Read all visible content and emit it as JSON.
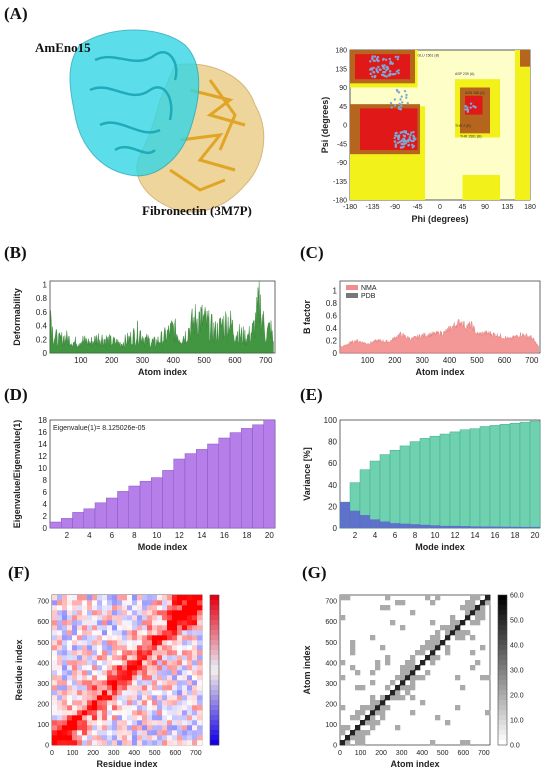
{
  "panels": {
    "A": "(A)",
    "B": "(B)",
    "C": "(C)",
    "D": "(D)",
    "E": "(E)",
    "F": "(F)",
    "G": "(G)"
  },
  "proteins": {
    "enolase": "AmEno15",
    "fibronectin": "Fibronectin (3M7P)"
  },
  "colors": {
    "enolase": "#33d6e6",
    "fibronectin": "#e8c87a",
    "ribbon": "#e0a31e",
    "ram_core": "#e01818",
    "ram_allowed": "#b5651d",
    "ram_generous": "#f2f21a",
    "ram_outside": "#fefec8",
    "points": "#7fa8d8",
    "green": "#2e8b2e",
    "nma": "#f28c8c",
    "pdb": "#777777",
    "purple": "#b57ee8",
    "teal": "#6fd1b0",
    "blue": "#5a5ad0"
  },
  "chart_data": [
    {
      "id": "ramachandran",
      "type": "scatter",
      "xlabel": "Phi (degrees)",
      "ylabel": "Psi (degrees)",
      "xlim": [
        -180,
        180
      ],
      "ylim": [
        -180,
        180
      ],
      "xticks": [
        -180,
        -135,
        -90,
        -45,
        0,
        45,
        90,
        135,
        180
      ],
      "yticks": [
        180,
        135,
        90,
        45,
        0,
        -45,
        -90,
        -135,
        -180
      ],
      "xtick_labels": [
        "-180",
        "-135",
        "-90",
        "-45",
        "0",
        "45",
        "90",
        "135",
        "180"
      ],
      "ytick_labels": [
        "180",
        "135",
        "90",
        "45",
        "0",
        "-45",
        "-90",
        "-135",
        "-180"
      ],
      "region_labels": [
        "GLU 1561 (B)",
        "ASP 239 (A)",
        "ASN 156 (A)",
        "THR 2 (B)",
        "THR 1561 (B)"
      ]
    },
    {
      "id": "deformability",
      "type": "area",
      "xlabel": "Atom index",
      "ylabel": "Deformability",
      "xlim": [
        0,
        730
      ],
      "ylim": [
        0,
        1.05
      ],
      "xticks": [
        100,
        200,
        300,
        400,
        500,
        600,
        700
      ],
      "xtick_labels": [
        "100",
        "200",
        "300",
        "400",
        "500",
        "600",
        "700"
      ],
      "yticks": [
        0,
        0.2,
        0.4,
        0.6,
        0.8,
        1
      ],
      "ytick_labels": [
        "0",
        "0.2",
        "0.4",
        "0.6",
        "0.8",
        "1"
      ],
      "x": [
        0,
        5,
        10,
        30,
        50,
        80,
        100,
        130,
        160,
        200,
        230,
        260,
        290,
        310,
        340,
        370,
        400,
        420,
        440,
        460,
        480,
        500,
        520,
        540,
        560,
        580,
        600,
        620,
        640,
        660,
        680,
        700,
        715,
        725
      ],
      "y": [
        1.0,
        0.6,
        0.35,
        0.25,
        0.3,
        0.2,
        0.25,
        0.2,
        0.3,
        0.22,
        0.18,
        0.28,
        0.42,
        0.25,
        0.2,
        0.3,
        0.48,
        0.3,
        0.35,
        0.55,
        0.7,
        0.62,
        0.5,
        0.4,
        0.55,
        0.62,
        0.4,
        0.35,
        0.3,
        0.45,
        0.95,
        0.35,
        0.5,
        0.2
      ]
    },
    {
      "id": "bfactor",
      "type": "area",
      "xlabel": "Atom index",
      "ylabel": "B factor",
      "xlim": [
        0,
        730
      ],
      "ylim": [
        0,
        1.15
      ],
      "xticks": [
        100,
        200,
        300,
        400,
        500,
        600,
        700
      ],
      "xtick_labels": [
        "100",
        "200",
        "300",
        "400",
        "500",
        "600",
        "700"
      ],
      "yticks": [
        0,
        0.2,
        0.4,
        0.6,
        0.8,
        1
      ],
      "ytick_labels": [
        "0",
        "0.2",
        "0.4",
        "0.6",
        "0.8",
        "1"
      ],
      "legend": [
        "NMA",
        "PDB"
      ],
      "x": [
        0,
        10,
        30,
        60,
        100,
        140,
        180,
        220,
        260,
        300,
        340,
        380,
        420,
        440,
        460,
        480,
        500,
        540,
        580,
        620,
        660,
        700,
        725
      ],
      "y": [
        0.1,
        0.1,
        0.15,
        0.2,
        0.15,
        0.2,
        0.18,
        0.3,
        0.22,
        0.28,
        0.3,
        0.32,
        0.45,
        0.5,
        0.42,
        0.45,
        0.3,
        0.32,
        0.28,
        0.22,
        0.3,
        0.25,
        0.1
      ]
    },
    {
      "id": "eigenvalue",
      "type": "bar",
      "xlabel": "Mode index",
      "ylabel": "Eigenvalue/Eigenvalue(1)",
      "annotation": "Eigenvalue(1)= 8.125026e-05",
      "ylim": [
        0,
        18
      ],
      "categories": [
        1,
        2,
        3,
        4,
        5,
        6,
        7,
        8,
        9,
        10,
        11,
        12,
        13,
        14,
        15,
        16,
        17,
        18,
        19,
        20
      ],
      "values": [
        1.0,
        1.6,
        2.6,
        3.2,
        4.2,
        5.0,
        6.1,
        7.0,
        7.8,
        8.4,
        9.6,
        11.5,
        12.4,
        13.1,
        14.0,
        15.0,
        15.9,
        16.6,
        17.2,
        18.0
      ],
      "xtick_labels": [
        "2",
        "4",
        "6",
        "8",
        "10",
        "12",
        "14",
        "16",
        "18",
        "20"
      ],
      "yticks": [
        0,
        2,
        4,
        6,
        8,
        10,
        12,
        14,
        16,
        18
      ],
      "ytick_labels": [
        "0",
        "2",
        "4",
        "6",
        "8",
        "10",
        "12",
        "14",
        "16",
        "18"
      ]
    },
    {
      "id": "variance",
      "type": "bar",
      "xlabel": "Mode index",
      "ylabel": "Variance [%]",
      "ylim": [
        0,
        100
      ],
      "categories": [
        1,
        2,
        3,
        4,
        5,
        6,
        7,
        8,
        9,
        10,
        11,
        12,
        13,
        14,
        15,
        16,
        17,
        18,
        19,
        20
      ],
      "cumulative": [
        24,
        42,
        54,
        62,
        68,
        72,
        76,
        80,
        83,
        85,
        87,
        89,
        91,
        92,
        94,
        95,
        96,
        97,
        98,
        99
      ],
      "individual": [
        24,
        16,
        12,
        8,
        6,
        4.5,
        4,
        3.5,
        3,
        2.5,
        2,
        2,
        1.8,
        1.5,
        1.4,
        1.3,
        1.2,
        1.1,
        1,
        1
      ],
      "xtick_labels": [
        "2",
        "4",
        "6",
        "8",
        "10",
        "12",
        "14",
        "16",
        "18",
        "20"
      ],
      "yticks": [
        0,
        20,
        40,
        60,
        80,
        100
      ],
      "ytick_labels": [
        "0",
        "20",
        "40",
        "60",
        "80",
        "100"
      ]
    },
    {
      "id": "covariance",
      "type": "heatmap",
      "xlabel": "Residue index",
      "ylabel": "Residue index",
      "xlim": [
        0,
        730
      ],
      "ylim": [
        0,
        730
      ],
      "xticks": [
        0,
        100,
        200,
        300,
        400,
        500,
        600,
        700
      ],
      "xtick_labels": [
        "0",
        "100",
        "200",
        "300",
        "400",
        "500",
        "600",
        "700"
      ],
      "ytick_labels": [
        "0",
        "100",
        "200",
        "300",
        "400",
        "500",
        "600",
        "700"
      ]
    },
    {
      "id": "elastic",
      "type": "heatmap",
      "xlabel": "Atom index",
      "ylabel": "Atom index",
      "xlim": [
        0,
        730
      ],
      "ylim": [
        0,
        730
      ],
      "xticks": [
        0,
        100,
        200,
        300,
        400,
        500,
        600,
        700
      ],
      "xtick_labels": [
        "0",
        "100",
        "200",
        "300",
        "400",
        "500",
        "600",
        "700"
      ],
      "ytick_labels": [
        "0",
        "100",
        "200",
        "300",
        "400",
        "500",
        "600",
        "700"
      ],
      "colorbar_ticks": [
        0,
        10,
        20,
        30,
        40,
        50,
        60
      ],
      "colorbar_labels": [
        "0.0",
        "10.0",
        "20.0",
        "30.0",
        "40.0",
        "50.0",
        "60.0"
      ]
    }
  ]
}
